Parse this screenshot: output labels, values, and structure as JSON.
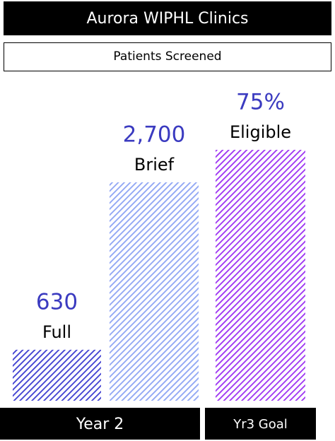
{
  "title": "Aurora WIPHL Clinics",
  "subtitle": "Patients Screened",
  "chart_data": [
    {
      "type": "bar",
      "group": "Year 2",
      "categories": [
        "Full",
        "Brief"
      ],
      "values": [
        630,
        2700
      ],
      "value_labels": [
        "630",
        "2,700"
      ],
      "colors": [
        "#3b3bd0",
        "#8ea4f4"
      ]
    },
    {
      "type": "bar",
      "group": "Yr3 Goal",
      "categories": [
        "Eligible"
      ],
      "values": [
        75
      ],
      "value_labels": [
        "75%"
      ],
      "colors": [
        "#9b2ff2"
      ]
    }
  ]
}
